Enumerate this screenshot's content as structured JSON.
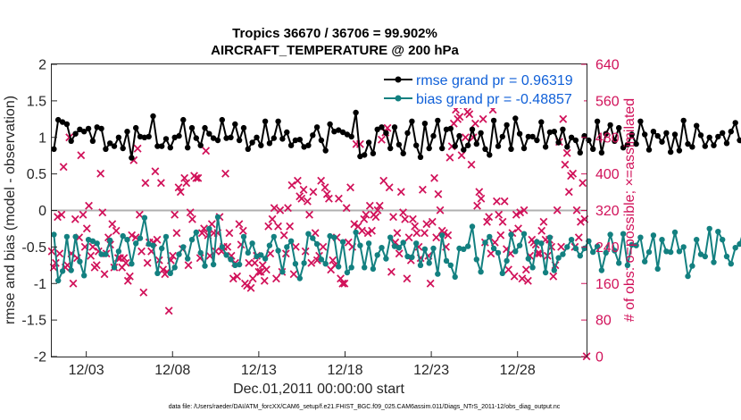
{
  "colors": {
    "rmse": "#000000",
    "bias": "#138080",
    "obs": "#d1125a",
    "legend_text": "#1060d8",
    "axis": "#262626",
    "zero": "#b0b0b0"
  },
  "chart_data": {
    "type": "line",
    "title": "Tropics 36670 / 36706 = 99.902%",
    "subtitle": "AIRCRAFT_TEMPERATURE @ 200 hPa",
    "xlabel": "Dec.01,2011 00:00:00 start",
    "ylabel": "rmse and bias (model - observation)",
    "ylabel_right": "# of obs: o=possible; ×=assimilated",
    "footnote": "data file: /Users/raeder/DAI/ATM_forcXX/CAM6_setup/f.e21.FHIST_BGC.f09_025.CAM6assim.011/Diags_NTrS_2011-12/obs_diag_output.nc",
    "xlim": [
      1,
      32
    ],
    "x_ticks": [
      3,
      8,
      13,
      18,
      23,
      28
    ],
    "x_tick_labels": [
      "12/03",
      "12/08",
      "12/13",
      "12/18",
      "12/23",
      "12/28"
    ],
    "ylim": [
      -2,
      2
    ],
    "y_ticks": [
      "-2",
      "-1.5",
      "-1",
      "-0.5",
      "0",
      "0.5",
      "1",
      "1.5",
      "2"
    ],
    "ylim_right": [
      0,
      640
    ],
    "y_ticks_right": [
      "0",
      "80",
      "160",
      "240",
      "320",
      "400",
      "480",
      "560",
      "640"
    ],
    "legend_placement": "top-right",
    "x_start": 1.125,
    "x_step": 0.25,
    "series": [
      {
        "name": "rmse grand pr = 0.96319",
        "color": "#000000",
        "values": [
          0.84,
          1.24,
          1.21,
          1.18,
          0.95,
          1.05,
          1.11,
          1.08,
          1.12,
          0.95,
          1.14,
          1.12,
          0.84,
          0.92,
          0.88,
          1.0,
          0.85,
          1.08,
          0.72,
          1.13,
          1.01,
          1.0,
          1.01,
          1.29,
          0.88,
          0.88,
          0.98,
          0.86,
          1.0,
          1.02,
          1.24,
          0.86,
          1.13,
          0.99,
          0.89,
          1.13,
          1.05,
          0.99,
          0.96,
          1.24,
          0.99,
          1.0,
          1.18,
          0.96,
          1.13,
          0.84,
          0.93,
          1.0,
          0.89,
          1.22,
          0.92,
          0.99,
          1.22,
          0.98,
          1.07,
          0.89,
          0.96,
          0.97,
          0.87,
          0.89,
          1.03,
          1.14,
          0.96,
          0.82,
          1.18,
          1.08,
          1.1,
          1.07,
          1.04,
          1.01,
          1.34,
          0.74,
          0.76,
          0.93,
          0.78,
          1.11,
          1.14,
          1.06,
          0.85,
          1.14,
          0.9,
          0.78,
          1.06,
          1.22,
          0.89,
          0.73,
          1.19,
          0.85,
          1.02,
          1.23,
          0.85,
          1.11,
          1.12,
          0.88,
          1.02,
          0.83,
          0.89,
          1.11,
          0.91,
          1.06,
          0.84,
          0.76,
          1.23,
          0.88,
          1.01,
          1.17,
          0.84,
          1.26,
          1.05,
          0.85,
          1.01,
          1.01,
          0.96,
          1.21,
          0.87,
          1.07,
          1.08,
          0.93,
          1.11,
          0.87,
          1.0,
          0.96,
          0.79,
          1.02,
          0.96,
          0.84,
          1.22,
          0.79,
          1.05,
          1.17,
          0.95,
          1.13,
          0.86,
          0.9,
          1.04,
          0.91,
          1.22,
          1.04,
          0.83,
          1.08,
          1.02,
          0.94,
          1.06,
          0.8,
          1.04,
          0.82,
          1.23,
          0.91,
          0.87,
          1.16,
          1.03,
          0.88,
          1.0,
          0.89,
          1.01,
          1.06,
          0.92,
          1.08,
          1.2,
          0.96,
          0.88,
          0.88,
          0.88,
          1.21,
          0.93,
          0.82,
          1.02,
          0.93,
          1.0,
          0.98,
          1.11,
          0.9,
          0.94,
          0.86,
          1.12,
          1.08,
          0.98,
          1.03,
          1.04,
          1.09,
          0.87,
          1.16
        ]
      },
      {
        "name": "bias grand pr = -0.48857",
        "color": "#138080",
        "values": [
          -0.33,
          -0.96,
          -0.83,
          -0.36,
          -0.82,
          -0.36,
          -0.7,
          -0.89,
          -0.4,
          -0.42,
          -0.45,
          -0.6,
          -0.6,
          -0.41,
          -0.78,
          -0.56,
          -0.35,
          -0.4,
          -0.73,
          -0.45,
          -0.38,
          -0.1,
          -0.46,
          -0.48,
          -0.86,
          -0.52,
          -0.36,
          -0.86,
          -0.78,
          -0.6,
          -0.5,
          -0.66,
          -0.4,
          -0.3,
          -0.58,
          -0.76,
          -0.25,
          -0.74,
          -0.09,
          -0.5,
          -0.61,
          -0.67,
          -0.75,
          -0.74,
          -0.36,
          -0.58,
          -0.45,
          -0.63,
          -0.61,
          -0.66,
          -0.48,
          -0.36,
          -0.55,
          -0.84,
          -0.5,
          -0.42,
          -0.73,
          -0.93,
          -0.72,
          -0.32,
          -0.38,
          -0.46,
          -0.67,
          -0.73,
          -0.35,
          -0.37,
          -0.77,
          -0.43,
          -0.85,
          -0.78,
          -0.3,
          -0.48,
          -0.78,
          -0.45,
          -0.8,
          -0.61,
          -0.51,
          -0.66,
          -0.37,
          -0.49,
          -0.51,
          -0.44,
          -0.63,
          -0.64,
          -0.45,
          -0.75,
          -0.53,
          -0.72,
          -0.52,
          -0.87,
          -0.34,
          -0.69,
          -0.75,
          -0.91,
          -0.52,
          -0.53,
          -0.49,
          -0.22,
          -0.67,
          -0.84,
          -0.44,
          -0.36,
          -0.52,
          -0.58,
          -0.86,
          -0.69,
          -0.33,
          -0.56,
          -0.48,
          -0.32,
          -0.66,
          -0.78,
          -0.43,
          -0.45,
          -0.85,
          -0.37,
          -0.82,
          -0.65,
          -0.6,
          -0.5,
          -0.4,
          -0.52,
          -0.62,
          -0.52,
          -0.42,
          -0.57,
          -0.49,
          -0.82,
          -0.58,
          -0.33,
          -0.55,
          -0.72,
          -0.32,
          -0.75,
          -0.47,
          -0.48,
          -0.37,
          -0.7,
          -0.57,
          -0.34,
          -0.8,
          -0.4,
          -0.56,
          -0.57,
          -0.3,
          -0.56,
          -0.5,
          -0.9,
          -0.76,
          -0.4,
          -0.6,
          -0.63,
          -0.25,
          -0.71,
          -0.29,
          -0.4,
          -0.63,
          -0.73,
          -0.51,
          -0.46,
          -0.27,
          -0.62,
          -0.75,
          -0.34,
          -0.7,
          -0.37,
          -0.59,
          -0.64,
          -0.59,
          -0.38,
          -0.75,
          -0.65,
          -0.53,
          -0.63,
          -0.38,
          -0.58,
          -0.62,
          -0.56,
          -0.7,
          -0.51,
          -0.73
        ]
      }
    ],
    "obs_assimilated": {
      "name": "# of obs assimilated",
      "marker": "×",
      "color": "#d1125a",
      "values": [
        230,
        195,
        205,
        305,
        225,
        310,
        415,
        195,
        200,
        480,
        225,
        160,
        300,
        215,
        260,
        440,
        310,
        240,
        280,
        330,
        220,
        240,
        195,
        200,
        230,
        400,
        315,
        180,
        225,
        260,
        245,
        290,
        195,
        275,
        215,
        215,
        195,
        215,
        205,
        165,
        175,
        265,
        430,
        260,
        455,
        310,
        230,
        140,
        380,
        205,
        250,
        230,
        250,
        405,
        255,
        210,
        380,
        190,
        180,
        185,
        100,
        210,
        220,
        310,
        270,
        370,
        360,
        235,
        390,
        380,
        200,
        315,
        300,
        395,
        390,
        390,
        215,
        270,
        280,
        450,
        265,
        220,
        290,
        270,
        230,
        270,
        305,
        230,
        240,
        400,
        240,
        270,
        220,
        170,
        205,
        175,
        290,
        245,
        275,
        160,
        155,
        205,
        150,
        170,
        205,
        220,
        185,
        185,
        200,
        165,
        190,
        285,
        225,
        300,
        325,
        170,
        285,
        320,
        185,
        265,
        225,
        325,
        285,
        375,
        180,
        240,
        385,
        350,
        345,
        365,
        230,
        340,
        310,
        205,
        360,
        270,
        210,
        220,
        385,
        240,
        370,
        355,
        345,
        190,
        210,
        200,
        260,
        345,
        170,
        160,
        160,
        325,
        250,
        370,
        240,
        290,
        465,
        285,
        465,
        275,
        300,
        310,
        270,
        330,
        275,
        310,
        305,
        320,
        330,
        475,
        385,
        490,
        500,
        370,
        185,
        305,
        250,
        270,
        225,
        360,
        315,
        300,
        170,
        260,
        210,
        300,
        285,
        270,
        240,
        215,
        365,
        270,
        290,
        220,
        160,
        295,
        390,
        260,
        355,
        320,
        275,
        270,
        240,
        265,
        435,
        460,
        510,
        540,
        520,
        525,
        440,
        550,
        480,
        535,
        530,
        420,
        480,
        510,
        330,
        360,
        345,
        520,
        250,
        295,
        305,
        225,
        540,
        250,
        340,
        310,
        265,
        295,
        340,
        235,
        190,
        225,
        270,
        175,
        310,
        280,
        315,
        170,
        320,
        190,
        165,
        220,
        255,
        250,
        245,
        225,
        225,
        275,
        295,
        255,
        220,
        255,
        240,
        175,
        200,
        320,
        470,
        240,
        520,
        420,
        445,
        360,
        395,
        400,
        240,
        320,
        260,
        295,
        380,
        300,
        0
      ]
    }
  }
}
